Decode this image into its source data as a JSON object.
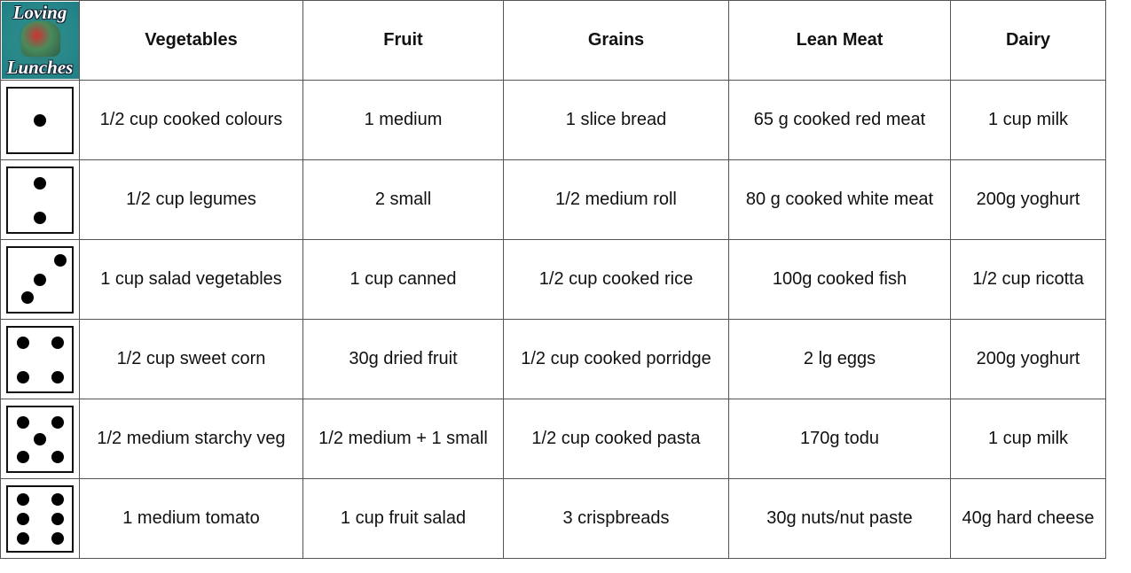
{
  "logo": {
    "top": "Loving",
    "bottom": "Lunches"
  },
  "table": {
    "header": [
      "Vegetables",
      "Fruit",
      "Grains",
      "Lean Meat",
      "Dairy"
    ],
    "rows": [
      [
        "1/2 cup cooked colours",
        "1 medium",
        "1 slice bread",
        "65 g cooked red meat",
        "1 cup milk"
      ],
      [
        "1/2 cup legumes",
        "2 small",
        "1/2 medium roll",
        "80 g cooked white meat",
        "200g yoghurt"
      ],
      [
        "1 cup salad vegetables",
        "1 cup canned",
        "1/2 cup cooked rice",
        "100g cooked fish",
        "1/2 cup ricotta"
      ],
      [
        "1/2 cup sweet corn",
        "30g dried fruit",
        "1/2 cup cooked porridge",
        "2 lg eggs",
        "200g yoghurt"
      ],
      [
        "1/2 medium starchy veg",
        "1/2 medium + 1 small",
        "1/2 cup cooked pasta",
        "170g todu",
        "1 cup milk"
      ],
      [
        "1 medium tomato",
        "1 cup fruit salad",
        "3 crispbreads",
        "30g nuts/nut paste",
        "40g hard cheese"
      ]
    ]
  }
}
